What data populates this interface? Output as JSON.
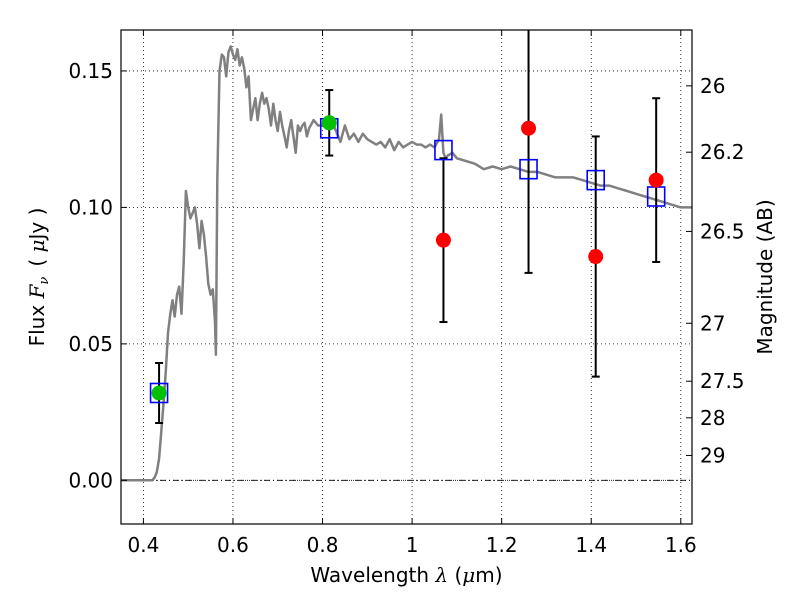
{
  "chart_data": {
    "type": "scatter",
    "xlim": [
      0.35,
      1.625
    ],
    "ylim": [
      -0.016,
      0.165
    ],
    "grid": true,
    "x_ticks": [
      0.4,
      0.6,
      0.8,
      1.0,
      1.2,
      1.4,
      1.6
    ],
    "x_tick_labels": [
      "0.4",
      "0.6",
      "0.8",
      "1",
      "1.2",
      "1.4",
      "1.6"
    ],
    "y_ticks": [
      0.0,
      0.05,
      0.1,
      0.15
    ],
    "y_tick_labels": [
      "0.00",
      "0.05",
      "0.10",
      "0.15"
    ],
    "xlabel": {
      "prefix": "Wavelength ",
      "symbol": "λ",
      "units_open": " (",
      "unit_symbol": "μ",
      "units_close": "m)"
    },
    "ylabel": {
      "prefix": "Flux ",
      "symbol": "F",
      "subscript": "ν",
      "units_open": "( ",
      "unit_symbol": "μ",
      "units_close": "Jy )"
    },
    "right_axis": {
      "label": "Magnitude (AB)",
      "ticks": [
        {
          "mag": 26,
          "label": "26"
        },
        {
          "mag": 26.2,
          "label": "26.2"
        },
        {
          "mag": 26.5,
          "label": "26.5"
        },
        {
          "mag": 27,
          "label": "27"
        },
        {
          "mag": 27.5,
          "label": "27.5"
        },
        {
          "mag": 28,
          "label": "28"
        },
        {
          "mag": 29,
          "label": "29"
        }
      ]
    },
    "series": [
      {
        "kind": "line",
        "color": "#808080",
        "x": [
          0.35,
          0.42,
          0.425,
          0.43,
          0.435,
          0.44,
          0.445,
          0.45,
          0.455,
          0.46,
          0.465,
          0.47,
          0.475,
          0.48,
          0.485,
          0.49,
          0.495,
          0.5,
          0.505,
          0.51,
          0.515,
          0.52,
          0.525,
          0.53,
          0.535,
          0.54,
          0.545,
          0.55,
          0.555,
          0.56,
          0.562,
          0.565,
          0.57,
          0.575,
          0.58,
          0.585,
          0.59,
          0.595,
          0.6,
          0.605,
          0.61,
          0.615,
          0.62,
          0.625,
          0.63,
          0.635,
          0.64,
          0.645,
          0.65,
          0.655,
          0.66,
          0.665,
          0.67,
          0.675,
          0.68,
          0.685,
          0.69,
          0.695,
          0.7,
          0.705,
          0.71,
          0.715,
          0.72,
          0.725,
          0.73,
          0.735,
          0.74,
          0.745,
          0.75,
          0.755,
          0.76,
          0.765,
          0.77,
          0.78,
          0.79,
          0.8,
          0.81,
          0.82,
          0.83,
          0.84,
          0.85,
          0.86,
          0.87,
          0.88,
          0.89,
          0.9,
          0.91,
          0.92,
          0.93,
          0.94,
          0.95,
          0.96,
          0.97,
          0.98,
          0.99,
          1.0,
          1.01,
          1.02,
          1.03,
          1.04,
          1.05,
          1.06,
          1.065,
          1.07,
          1.075,
          1.08,
          1.09,
          1.1,
          1.12,
          1.14,
          1.16,
          1.18,
          1.2,
          1.22,
          1.24,
          1.26,
          1.28,
          1.3,
          1.32,
          1.34,
          1.36,
          1.38,
          1.4,
          1.42,
          1.44,
          1.46,
          1.48,
          1.5,
          1.52,
          1.54,
          1.56,
          1.58,
          1.6,
          1.625
        ],
        "y": [
          0.0,
          0.0,
          0.001,
          0.003,
          0.008,
          0.018,
          0.028,
          0.04,
          0.054,
          0.061,
          0.066,
          0.06,
          0.068,
          0.071,
          0.061,
          0.08,
          0.106,
          0.1,
          0.096,
          0.098,
          0.1,
          0.094,
          0.085,
          0.095,
          0.09,
          0.082,
          0.072,
          0.068,
          0.07,
          0.058,
          0.046,
          0.11,
          0.15,
          0.156,
          0.155,
          0.148,
          0.157,
          0.159,
          0.156,
          0.154,
          0.158,
          0.152,
          0.155,
          0.151,
          0.144,
          0.148,
          0.132,
          0.136,
          0.14,
          0.132,
          0.138,
          0.142,
          0.138,
          0.14,
          0.136,
          0.13,
          0.138,
          0.132,
          0.128,
          0.135,
          0.13,
          0.126,
          0.122,
          0.128,
          0.132,
          0.126,
          0.12,
          0.13,
          0.128,
          0.13,
          0.131,
          0.126,
          0.129,
          0.132,
          0.13,
          0.13,
          0.131,
          0.132,
          0.128,
          0.124,
          0.13,
          0.125,
          0.127,
          0.124,
          0.127,
          0.125,
          0.124,
          0.123,
          0.124,
          0.122,
          0.125,
          0.121,
          0.124,
          0.122,
          0.123,
          0.124,
          0.123,
          0.123,
          0.122,
          0.123,
          0.122,
          0.125,
          0.134,
          0.12,
          0.118,
          0.119,
          0.12,
          0.118,
          0.117,
          0.116,
          0.114,
          0.115,
          0.114,
          0.115,
          0.114,
          0.113,
          0.113,
          0.112,
          0.111,
          0.111,
          0.111,
          0.11,
          0.109,
          0.108,
          0.108,
          0.107,
          0.106,
          0.105,
          0.104,
          0.103,
          0.102,
          0.101,
          0.1,
          0.1
        ]
      },
      {
        "kind": "open-square",
        "color": "#0000ff",
        "x": [
          0.435,
          0.815,
          1.07,
          1.26,
          1.41,
          1.545
        ],
        "y": [
          0.032,
          0.129,
          0.121,
          0.114,
          0.11,
          0.104
        ]
      },
      {
        "kind": "filled-circle",
        "color": "#00c000",
        "x": [
          0.435,
          0.815
        ],
        "y": [
          0.032,
          0.131
        ],
        "yerr_low": [
          0.021,
          0.119
        ],
        "yerr_high": [
          0.043,
          0.143
        ]
      },
      {
        "kind": "filled-circle",
        "color": "#ff0000",
        "x": [
          1.07,
          1.26,
          1.41,
          1.545
        ],
        "y": [
          0.088,
          0.129,
          0.082,
          0.11
        ],
        "yerr_low": [
          0.058,
          0.076,
          0.038,
          0.08
        ],
        "yerr_high": [
          0.118,
          0.168,
          0.126,
          0.14
        ]
      }
    ]
  }
}
